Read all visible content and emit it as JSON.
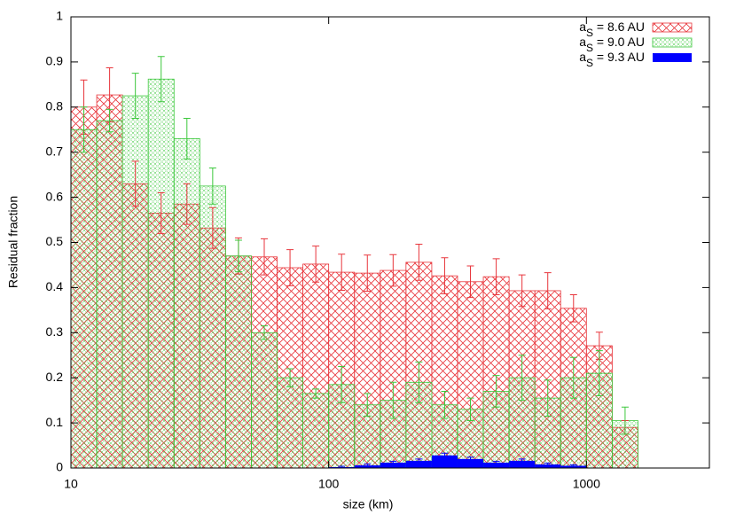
{
  "chart_data": {
    "type": "histogram",
    "xlabel": "size (km)",
    "ylabel": "Residual fraction",
    "bins": [
      10,
      12.59,
      15.85,
      19.95,
      25.12,
      31.62,
      39.81,
      50.12,
      63.1,
      79.43,
      100,
      125.9,
      158.5,
      199.5,
      251.2,
      316.2,
      398.1,
      501.2,
      631,
      794.3,
      1000,
      1259,
      1585
    ],
    "series": [
      {
        "name": "aS = 8.6 AU",
        "color": "#e8363c",
        "values": [
          0.8,
          0.827,
          0.63,
          0.565,
          0.585,
          0.532,
          0.47,
          0.468,
          0.444,
          0.452,
          0.434,
          0.432,
          0.438,
          0.456,
          0.426,
          0.413,
          0.424,
          0.393,
          0.393,
          0.354,
          0.271,
          0.09
        ],
        "errors": [
          0.06,
          0.06,
          0.05,
          0.045,
          0.045,
          0.045,
          0.04,
          0.04,
          0.04,
          0.04,
          0.04,
          0.04,
          0.035,
          0.04,
          0.04,
          0.035,
          0.04,
          0.035,
          0.04,
          0.03,
          0.03,
          0.015
        ]
      },
      {
        "name": "aS = 9.0 AU",
        "color": "#3cc83c",
        "values": [
          0.75,
          0.77,
          0.825,
          0.862,
          0.73,
          0.625,
          0.47,
          0.3,
          0.2,
          0.165,
          0.185,
          0.14,
          0.15,
          0.19,
          0.14,
          0.13,
          0.17,
          0.2,
          0.155,
          0.2,
          0.21,
          0.105
        ],
        "errors": [
          0.05,
          0.025,
          0.05,
          0.05,
          0.045,
          0.04,
          0.035,
          0.015,
          0.02,
          0.01,
          0.04,
          0.025,
          0.04,
          0.045,
          0.03,
          0.025,
          0.035,
          0.05,
          0.04,
          0.045,
          0.05,
          0.03
        ]
      },
      {
        "name": "aS = 9.3 AU",
        "color": "#0000ff",
        "values": [
          0,
          0,
          0,
          0,
          0,
          0,
          0,
          0,
          0,
          0,
          0.002,
          0.006,
          0.012,
          0.016,
          0.028,
          0.02,
          0.012,
          0.016,
          0.008,
          0.005,
          0,
          0
        ],
        "errors": [
          0,
          0,
          0,
          0,
          0,
          0,
          0,
          0,
          0,
          0,
          0.002,
          0.003,
          0.003,
          0.004,
          0.005,
          0.004,
          0.003,
          0.004,
          0.003,
          0.002,
          0,
          0
        ]
      }
    ],
    "xlim": [
      10,
      3000
    ],
    "xticks": [
      10,
      100,
      1000
    ],
    "log_x": true,
    "ylim": [
      0,
      1
    ],
    "yticks": [
      0,
      0.1,
      0.2,
      0.3,
      0.4,
      0.5,
      0.6,
      0.7,
      0.8,
      0.9,
      1
    ],
    "grid": false,
    "legend": "top-right"
  }
}
